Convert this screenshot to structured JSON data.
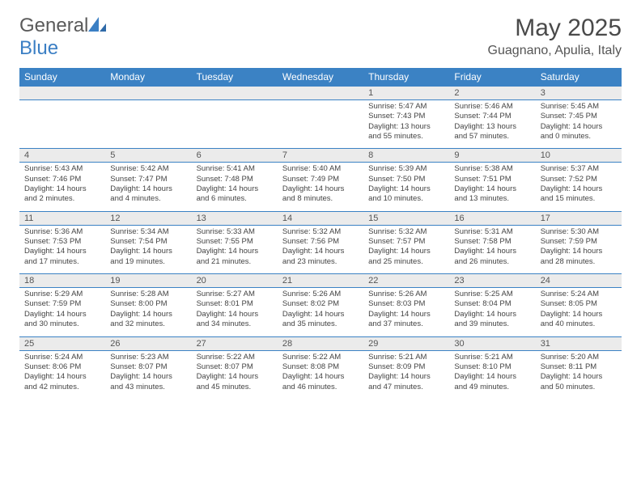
{
  "logo": {
    "text_general": "General",
    "text_blue": "Blue"
  },
  "title": {
    "month": "May 2025",
    "location": "Guagnano, Apulia, Italy"
  },
  "colors": {
    "header_bg": "#3b82c4",
    "header_text": "#ffffff",
    "daynum_bg": "#ebebeb",
    "border": "#3b82c4",
    "body_text": "#444444"
  },
  "days_header": [
    "Sunday",
    "Monday",
    "Tuesday",
    "Wednesday",
    "Thursday",
    "Friday",
    "Saturday"
  ],
  "weeks": [
    [
      null,
      null,
      null,
      null,
      {
        "n": "1",
        "sr": "Sunrise: 5:47 AM",
        "ss": "Sunset: 7:43 PM",
        "dl": "Daylight: 13 hours and 55 minutes."
      },
      {
        "n": "2",
        "sr": "Sunrise: 5:46 AM",
        "ss": "Sunset: 7:44 PM",
        "dl": "Daylight: 13 hours and 57 minutes."
      },
      {
        "n": "3",
        "sr": "Sunrise: 5:45 AM",
        "ss": "Sunset: 7:45 PM",
        "dl": "Daylight: 14 hours and 0 minutes."
      }
    ],
    [
      {
        "n": "4",
        "sr": "Sunrise: 5:43 AM",
        "ss": "Sunset: 7:46 PM",
        "dl": "Daylight: 14 hours and 2 minutes."
      },
      {
        "n": "5",
        "sr": "Sunrise: 5:42 AM",
        "ss": "Sunset: 7:47 PM",
        "dl": "Daylight: 14 hours and 4 minutes."
      },
      {
        "n": "6",
        "sr": "Sunrise: 5:41 AM",
        "ss": "Sunset: 7:48 PM",
        "dl": "Daylight: 14 hours and 6 minutes."
      },
      {
        "n": "7",
        "sr": "Sunrise: 5:40 AM",
        "ss": "Sunset: 7:49 PM",
        "dl": "Daylight: 14 hours and 8 minutes."
      },
      {
        "n": "8",
        "sr": "Sunrise: 5:39 AM",
        "ss": "Sunset: 7:50 PM",
        "dl": "Daylight: 14 hours and 10 minutes."
      },
      {
        "n": "9",
        "sr": "Sunrise: 5:38 AM",
        "ss": "Sunset: 7:51 PM",
        "dl": "Daylight: 14 hours and 13 minutes."
      },
      {
        "n": "10",
        "sr": "Sunrise: 5:37 AM",
        "ss": "Sunset: 7:52 PM",
        "dl": "Daylight: 14 hours and 15 minutes."
      }
    ],
    [
      {
        "n": "11",
        "sr": "Sunrise: 5:36 AM",
        "ss": "Sunset: 7:53 PM",
        "dl": "Daylight: 14 hours and 17 minutes."
      },
      {
        "n": "12",
        "sr": "Sunrise: 5:34 AM",
        "ss": "Sunset: 7:54 PM",
        "dl": "Daylight: 14 hours and 19 minutes."
      },
      {
        "n": "13",
        "sr": "Sunrise: 5:33 AM",
        "ss": "Sunset: 7:55 PM",
        "dl": "Daylight: 14 hours and 21 minutes."
      },
      {
        "n": "14",
        "sr": "Sunrise: 5:32 AM",
        "ss": "Sunset: 7:56 PM",
        "dl": "Daylight: 14 hours and 23 minutes."
      },
      {
        "n": "15",
        "sr": "Sunrise: 5:32 AM",
        "ss": "Sunset: 7:57 PM",
        "dl": "Daylight: 14 hours and 25 minutes."
      },
      {
        "n": "16",
        "sr": "Sunrise: 5:31 AM",
        "ss": "Sunset: 7:58 PM",
        "dl": "Daylight: 14 hours and 26 minutes."
      },
      {
        "n": "17",
        "sr": "Sunrise: 5:30 AM",
        "ss": "Sunset: 7:59 PM",
        "dl": "Daylight: 14 hours and 28 minutes."
      }
    ],
    [
      {
        "n": "18",
        "sr": "Sunrise: 5:29 AM",
        "ss": "Sunset: 7:59 PM",
        "dl": "Daylight: 14 hours and 30 minutes."
      },
      {
        "n": "19",
        "sr": "Sunrise: 5:28 AM",
        "ss": "Sunset: 8:00 PM",
        "dl": "Daylight: 14 hours and 32 minutes."
      },
      {
        "n": "20",
        "sr": "Sunrise: 5:27 AM",
        "ss": "Sunset: 8:01 PM",
        "dl": "Daylight: 14 hours and 34 minutes."
      },
      {
        "n": "21",
        "sr": "Sunrise: 5:26 AM",
        "ss": "Sunset: 8:02 PM",
        "dl": "Daylight: 14 hours and 35 minutes."
      },
      {
        "n": "22",
        "sr": "Sunrise: 5:26 AM",
        "ss": "Sunset: 8:03 PM",
        "dl": "Daylight: 14 hours and 37 minutes."
      },
      {
        "n": "23",
        "sr": "Sunrise: 5:25 AM",
        "ss": "Sunset: 8:04 PM",
        "dl": "Daylight: 14 hours and 39 minutes."
      },
      {
        "n": "24",
        "sr": "Sunrise: 5:24 AM",
        "ss": "Sunset: 8:05 PM",
        "dl": "Daylight: 14 hours and 40 minutes."
      }
    ],
    [
      {
        "n": "25",
        "sr": "Sunrise: 5:24 AM",
        "ss": "Sunset: 8:06 PM",
        "dl": "Daylight: 14 hours and 42 minutes."
      },
      {
        "n": "26",
        "sr": "Sunrise: 5:23 AM",
        "ss": "Sunset: 8:07 PM",
        "dl": "Daylight: 14 hours and 43 minutes."
      },
      {
        "n": "27",
        "sr": "Sunrise: 5:22 AM",
        "ss": "Sunset: 8:07 PM",
        "dl": "Daylight: 14 hours and 45 minutes."
      },
      {
        "n": "28",
        "sr": "Sunrise: 5:22 AM",
        "ss": "Sunset: 8:08 PM",
        "dl": "Daylight: 14 hours and 46 minutes."
      },
      {
        "n": "29",
        "sr": "Sunrise: 5:21 AM",
        "ss": "Sunset: 8:09 PM",
        "dl": "Daylight: 14 hours and 47 minutes."
      },
      {
        "n": "30",
        "sr": "Sunrise: 5:21 AM",
        "ss": "Sunset: 8:10 PM",
        "dl": "Daylight: 14 hours and 49 minutes."
      },
      {
        "n": "31",
        "sr": "Sunrise: 5:20 AM",
        "ss": "Sunset: 8:11 PM",
        "dl": "Daylight: 14 hours and 50 minutes."
      }
    ]
  ]
}
